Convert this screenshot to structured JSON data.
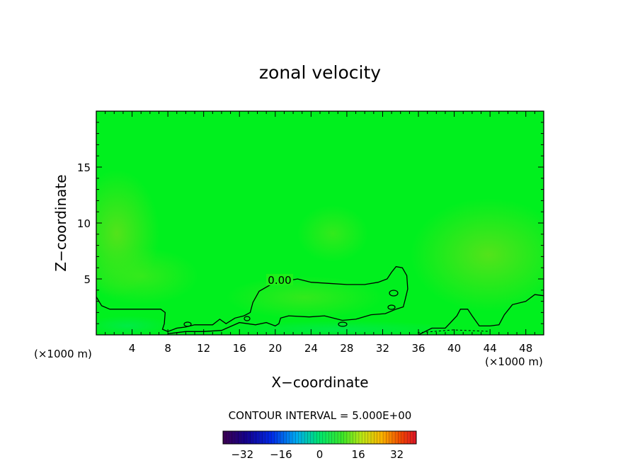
{
  "chart_data": {
    "type": "heatmap",
    "title": "zonal velocity",
    "xlabel": "X−coordinate",
    "ylabel": "Z−coordinate",
    "x_unit_left": "(×1000 m)",
    "x_unit_right": "(×1000 m)",
    "xlim": [
      0,
      50
    ],
    "ylim": [
      0,
      20
    ],
    "x_ticks": [
      4,
      8,
      12,
      16,
      20,
      24,
      28,
      32,
      36,
      40,
      44,
      48
    ],
    "x_tick_labels": [
      "4",
      "8",
      "12",
      "16",
      "20",
      "24",
      "28",
      "32",
      "36",
      "40",
      "44",
      "48"
    ],
    "y_ticks": [
      5,
      10,
      15
    ],
    "y_tick_labels": [
      "5",
      "10",
      "15"
    ],
    "contour_label": "0.00",
    "zero_contour": [
      [
        0,
        3.4
      ],
      [
        0.6,
        2.6
      ],
      [
        1.5,
        2.3
      ],
      [
        3,
        2.3
      ],
      [
        5,
        2.3
      ],
      [
        7.2,
        2.3
      ],
      [
        7.7,
        2.0
      ],
      [
        7.6,
        1.0
      ],
      [
        7.4,
        0.5
      ],
      [
        8,
        0.3
      ],
      [
        9,
        0.6
      ],
      [
        10,
        0.7
      ],
      [
        11,
        0.9
      ],
      [
        13,
        0.9
      ],
      [
        13.8,
        1.4
      ],
      [
        14.5,
        1.0
      ],
      [
        15.5,
        1.5
      ],
      [
        16.5,
        1.7
      ],
      [
        17.2,
        2.0
      ],
      [
        17.5,
        2.9
      ],
      [
        18.2,
        3.9
      ],
      [
        19.5,
        4.5
      ],
      [
        21,
        4.8
      ],
      [
        22.5,
        5.0
      ],
      [
        24,
        4.7
      ],
      [
        26,
        4.6
      ],
      [
        28,
        4.5
      ],
      [
        30,
        4.5
      ],
      [
        31.5,
        4.7
      ],
      [
        32.5,
        5.0
      ],
      [
        33,
        5.6
      ],
      [
        33.5,
        6.1
      ],
      [
        34.2,
        6.0
      ],
      [
        34.7,
        5.3
      ],
      [
        34.8,
        4.1
      ],
      [
        34.5,
        3.1
      ],
      [
        34.3,
        2.5
      ],
      [
        33.5,
        2.3
      ],
      [
        32.3,
        1.9
      ],
      [
        30.7,
        1.8
      ],
      [
        29,
        1.4
      ],
      [
        27.5,
        1.3
      ],
      [
        25.5,
        1.7
      ],
      [
        23.8,
        1.6
      ],
      [
        21.5,
        1.7
      ],
      [
        20.6,
        1.5
      ],
      [
        20.4,
        1.0
      ],
      [
        20.0,
        0.8
      ],
      [
        19.0,
        1.1
      ],
      [
        17.8,
        0.9
      ],
      [
        16.0,
        1.1
      ],
      [
        14.0,
        0.4
      ],
      [
        12.0,
        0.3
      ],
      [
        10.0,
        0.3
      ],
      [
        8.0,
        0.1
      ]
    ],
    "zero_contour_right": [
      [
        36.0,
        0.0
      ],
      [
        37.5,
        0.6
      ],
      [
        39.0,
        0.6
      ],
      [
        40.3,
        1.7
      ],
      [
        40.7,
        2.3
      ],
      [
        41.5,
        2.3
      ],
      [
        42.0,
        1.7
      ],
      [
        42.8,
        0.8
      ],
      [
        44.0,
        0.8
      ],
      [
        45.0,
        0.9
      ],
      [
        45.6,
        1.8
      ],
      [
        46.5,
        2.7
      ],
      [
        48.0,
        3.0
      ],
      [
        49.0,
        3.6
      ],
      [
        50.0,
        3.5
      ]
    ],
    "contour_interval_text": "CONTOUR INTERVAL =  5.000E+00",
    "colorbar_ticks": [
      -32,
      -16,
      0,
      16,
      32
    ],
    "colorbar_tick_labels": [
      "−32",
      "−16",
      "0",
      "16",
      "32"
    ],
    "colorbar_range": [
      -40,
      40
    ],
    "field_note_colors": {
      "background": "#00f01e",
      "near_zero": "#14ee14",
      "slightly_positive": "#3be61a",
      "positive": "#66e21a"
    }
  }
}
